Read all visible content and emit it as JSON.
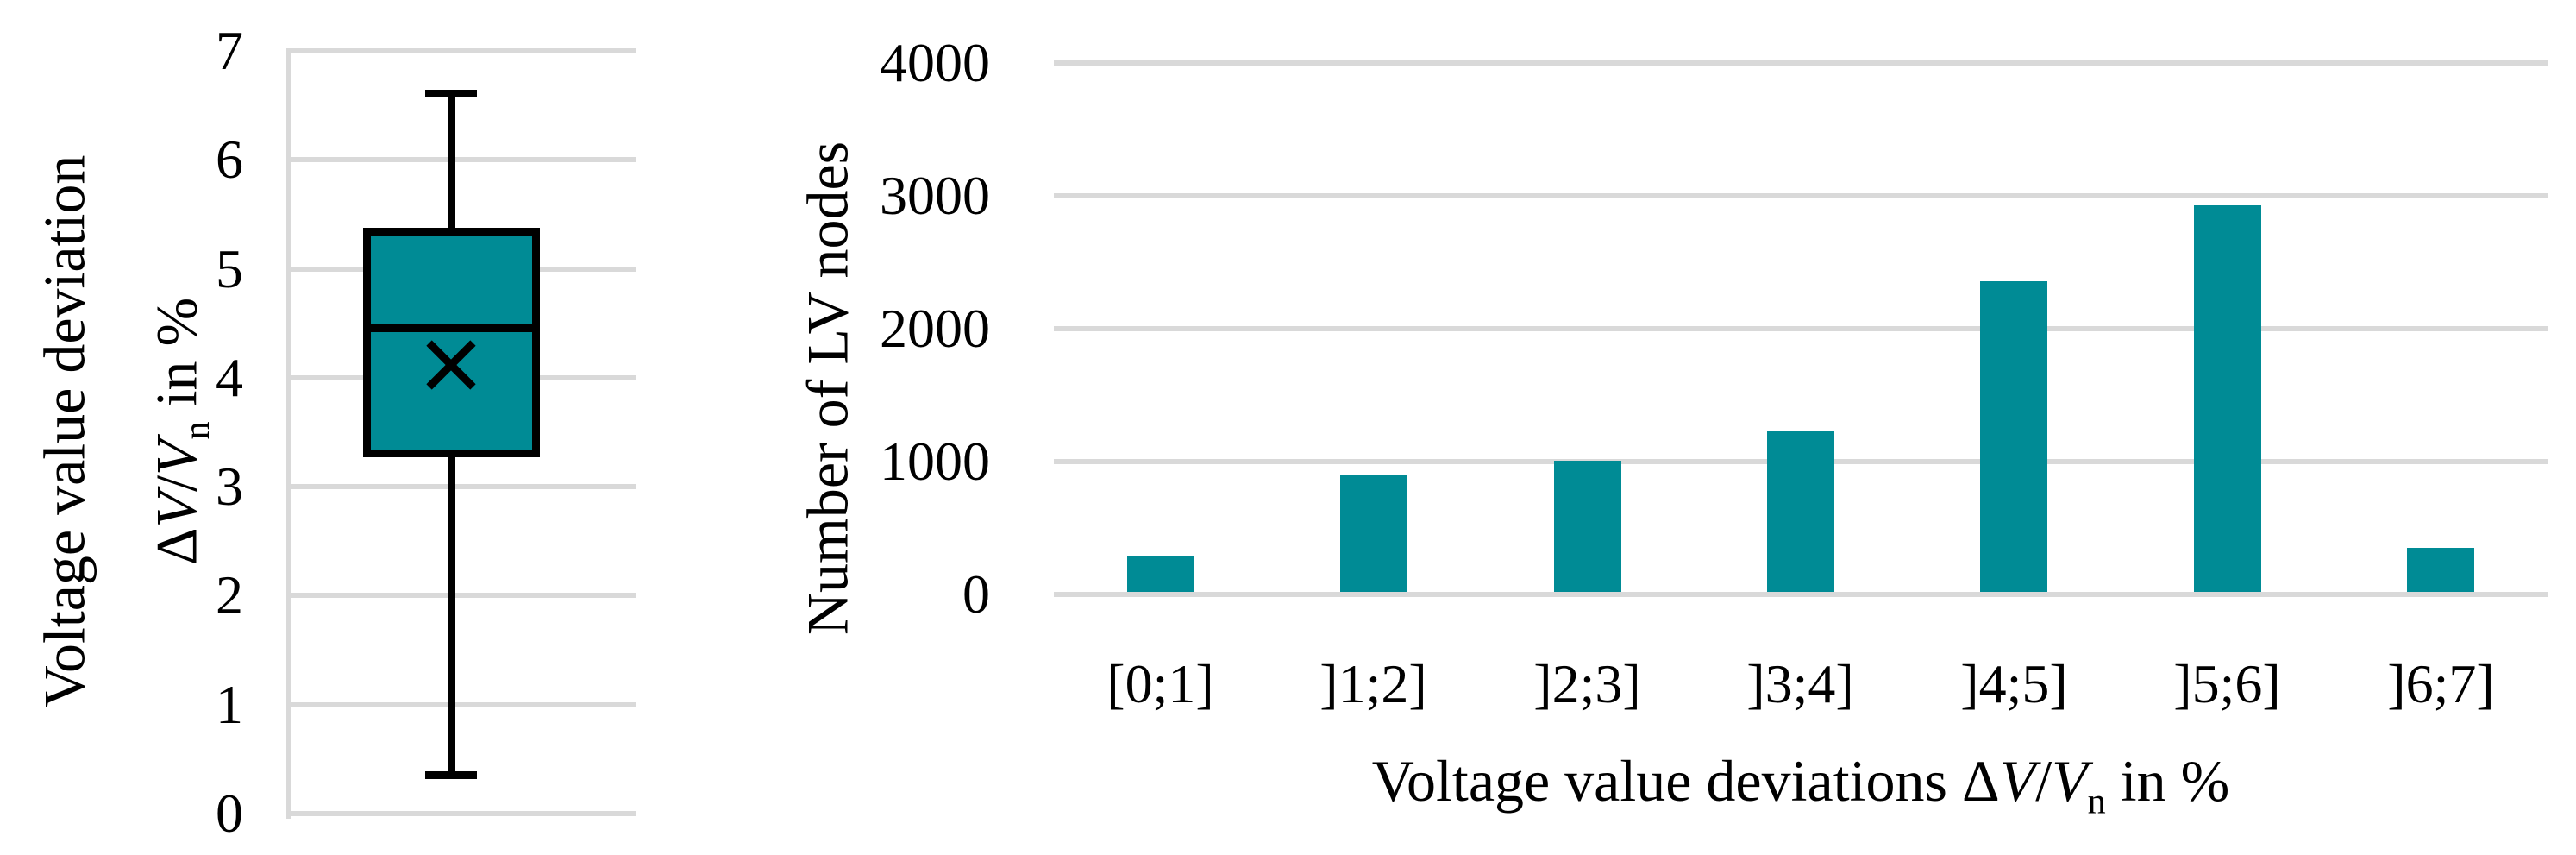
{
  "colors": {
    "teal": "#008B95",
    "gridline": "#D9D9D9",
    "line": "#000000",
    "background": "#FFFFFF"
  },
  "left_chart": {
    "ylabel_line1": "Voltage value deviation",
    "ylabel_line2_parts": [
      "Δ",
      "V",
      "/",
      "V",
      "n",
      " in %"
    ]
  },
  "right_chart": {
    "ylabel": "Number of LV nodes",
    "xlabel_parts": [
      "Voltage value deviations Δ",
      "V",
      "/",
      "V",
      "n",
      " in %"
    ]
  },
  "chart_data": [
    {
      "type": "boxplot",
      "title": "",
      "ylabel": "Voltage value deviation ΔV/Vn in %",
      "ylim": [
        0,
        7
      ],
      "yticks": [
        0,
        1,
        2,
        3,
        4,
        5,
        6,
        7
      ],
      "grid": true,
      "series": [
        {
          "name": "Voltage value deviation",
          "whisker_low": 0.36,
          "q1": 3.27,
          "median": 4.46,
          "mean": 4.12,
          "q3": 5.38,
          "whisker_high": 6.61
        }
      ]
    },
    {
      "type": "bar",
      "title": "",
      "categories": [
        "[0;1]",
        "]1;2]",
        "]2;3]",
        "]3;4]",
        "]4;5]",
        "]5;6]",
        "]6;7]"
      ],
      "values": [
        270,
        880,
        990,
        1210,
        2340,
        2910,
        330
      ],
      "xlabel": "Voltage value deviations ΔV/Vn in %",
      "ylabel": "Number of LV nodes",
      "ylim": [
        0,
        4000
      ],
      "yticks": [
        0,
        1000,
        2000,
        3000,
        4000
      ],
      "grid": true,
      "legend": false,
      "bar_color": "#008B95"
    }
  ]
}
